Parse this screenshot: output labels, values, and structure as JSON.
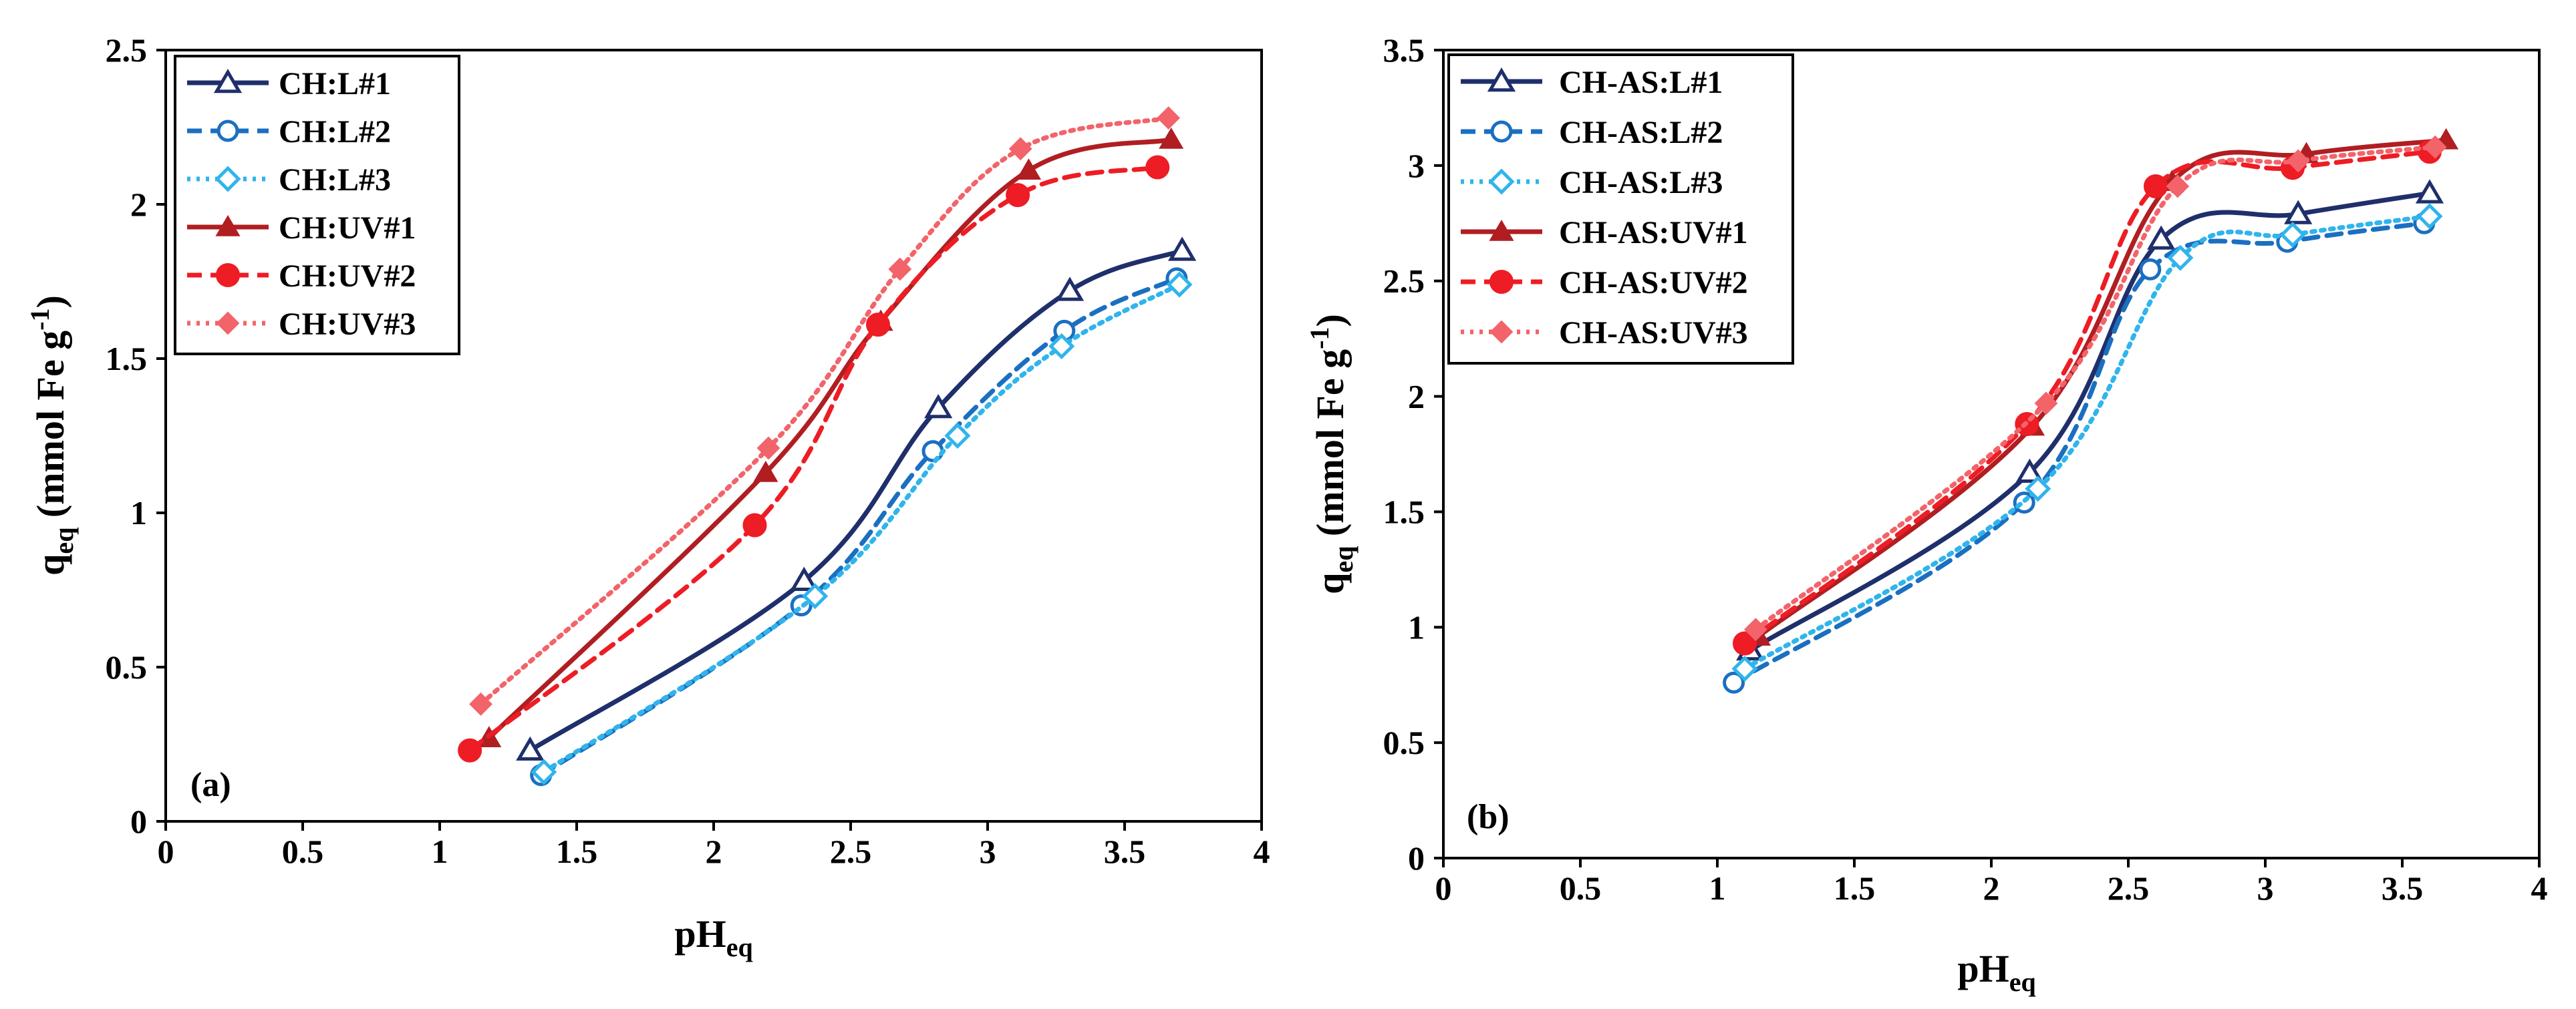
{
  "colors": {
    "navy": "#1f2f6b",
    "blue": "#1b6fc0",
    "lightblue": "#30b4ec",
    "darkred": "#b01e22",
    "red": "#ee1c24",
    "pink": "#f2636a"
  },
  "chart_data": [
    {
      "type": "line",
      "panel_label": "(a)",
      "xlabel_main": "pH",
      "xlabel_sub": "eq",
      "ylabel_main": "q",
      "ylabel_sub": "eq",
      "ylabel_rest": " (mmol Fe g",
      "ylabel_sup": "-1",
      "ylabel_end": ")",
      "xlim": [
        0,
        4
      ],
      "ylim": [
        0,
        2.5
      ],
      "xticks": [
        "0",
        "0.5",
        "1",
        "1.5",
        "2",
        "2.5",
        "3",
        "3.5",
        "4"
      ],
      "yticks": [
        "0",
        "0.5",
        "1",
        "1.5",
        "2",
        "2.5"
      ],
      "grid": false,
      "legend_position": "top-left",
      "series": [
        {
          "name": "CH:L#1",
          "color": "#1f2f6b",
          "dash": "solid",
          "marker": "triangle-open",
          "x": [
            1.33,
            2.33,
            2.82,
            3.3,
            3.71
          ],
          "y": [
            0.23,
            0.78,
            1.34,
            1.72,
            1.85
          ]
        },
        {
          "name": "CH:L#2",
          "color": "#1b6fc0",
          "dash": "dashed",
          "marker": "circle-open",
          "x": [
            1.37,
            2.32,
            2.8,
            3.28,
            3.69
          ],
          "y": [
            0.15,
            0.7,
            1.2,
            1.59,
            1.76
          ]
        },
        {
          "name": "CH:L#3",
          "color": "#30b4ec",
          "dash": "dotted",
          "marker": "diamond-open",
          "x": [
            1.38,
            2.37,
            2.89,
            3.27,
            3.7
          ],
          "y": [
            0.16,
            0.73,
            1.25,
            1.54,
            1.74
          ]
        },
        {
          "name": "CH:UV#1",
          "color": "#b01e22",
          "dash": "solid",
          "marker": "triangle-filled",
          "x": [
            1.18,
            2.19,
            2.61,
            3.15,
            3.67
          ],
          "y": [
            0.27,
            1.13,
            1.62,
            2.11,
            2.21
          ]
        },
        {
          "name": "CH:UV#2",
          "color": "#ee1c24",
          "dash": "dashed",
          "marker": "circle-filled",
          "x": [
            1.11,
            2.15,
            2.6,
            3.11,
            3.62
          ],
          "y": [
            0.23,
            0.96,
            1.61,
            2.03,
            2.12
          ]
        },
        {
          "name": "CH:UV#3",
          "color": "#f2636a",
          "dash": "dotted",
          "marker": "diamond-filled",
          "x": [
            1.15,
            2.2,
            2.68,
            3.12,
            3.66
          ],
          "y": [
            0.38,
            1.21,
            1.79,
            2.18,
            2.28
          ]
        }
      ]
    },
    {
      "type": "line",
      "panel_label": "(b)",
      "xlabel_main": "pH",
      "xlabel_sub": "eq",
      "ylabel_main": "q",
      "ylabel_sub": "eq",
      "ylabel_rest": " (mmol Fe g",
      "ylabel_sup": "-1",
      "ylabel_end": ")",
      "xlim": [
        0,
        4
      ],
      "ylim": [
        0,
        3.5
      ],
      "xticks": [
        "0",
        "0.5",
        "1",
        "1.5",
        "2",
        "2.5",
        "3",
        "3.5",
        "4"
      ],
      "yticks": [
        "0",
        "0.5",
        "1",
        "1.5",
        "2",
        "2.5",
        "3",
        "3.5"
      ],
      "grid": false,
      "legend_position": "top-left",
      "series": [
        {
          "name": "CH-AS:L#1",
          "color": "#1f2f6b",
          "dash": "solid",
          "marker": "triangle-open",
          "x": [
            1.12,
            2.14,
            2.62,
            3.12,
            3.6
          ],
          "y": [
            0.9,
            1.67,
            2.68,
            2.79,
            2.88
          ]
        },
        {
          "name": "CH-AS:L#2",
          "color": "#1b6fc0",
          "dash": "dashed",
          "marker": "circle-open",
          "x": [
            1.06,
            2.12,
            2.58,
            3.08,
            3.58
          ],
          "y": [
            0.76,
            1.54,
            2.55,
            2.67,
            2.75
          ]
        },
        {
          "name": "CH-AS:L#3",
          "color": "#30b4ec",
          "dash": "dotted",
          "marker": "diamond-open",
          "x": [
            1.1,
            2.17,
            2.69,
            3.1,
            3.6
          ],
          "y": [
            0.82,
            1.6,
            2.6,
            2.7,
            2.78
          ]
        },
        {
          "name": "CH-AS:UV#1",
          "color": "#b01e22",
          "dash": "solid",
          "marker": "triangle-filled",
          "x": [
            1.15,
            2.15,
            2.66,
            3.15,
            3.66
          ],
          "y": [
            0.96,
            1.87,
            2.93,
            3.05,
            3.11
          ]
        },
        {
          "name": "CH-AS:UV#2",
          "color": "#ee1c24",
          "dash": "dashed",
          "marker": "circle-filled",
          "x": [
            1.1,
            2.13,
            2.6,
            3.1,
            3.6
          ],
          "y": [
            0.93,
            1.88,
            2.91,
            2.99,
            3.06
          ]
        },
        {
          "name": "CH-AS:UV#3",
          "color": "#f2636a",
          "dash": "dotted",
          "marker": "diamond-filled",
          "x": [
            1.14,
            2.2,
            2.68,
            3.12,
            3.62
          ],
          "y": [
            0.99,
            1.97,
            2.91,
            3.02,
            3.08
          ]
        }
      ]
    }
  ]
}
